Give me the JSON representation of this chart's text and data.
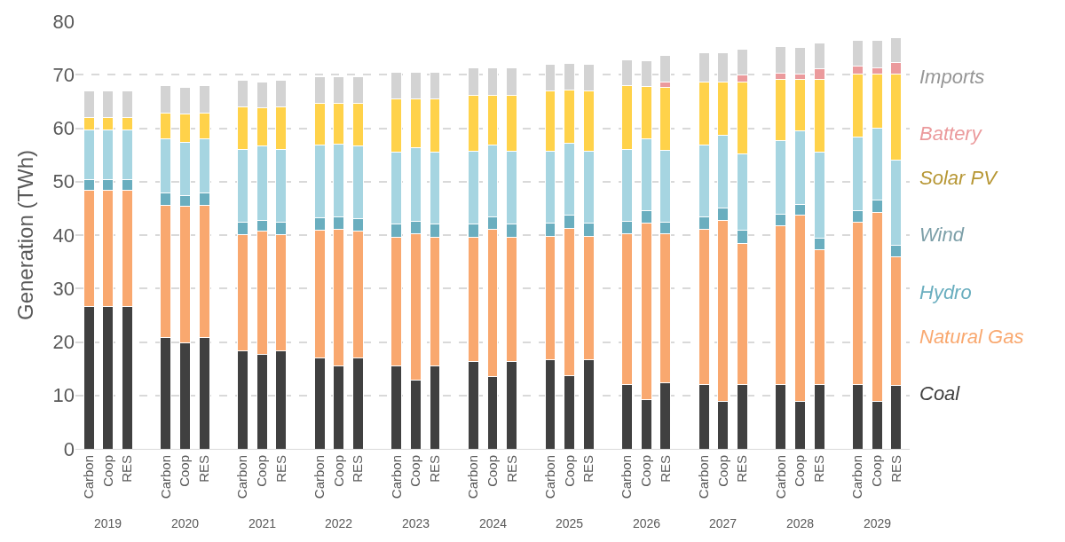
{
  "chart_data": {
    "type": "bar",
    "stacked": true,
    "ylabel": "Generation (TWh)",
    "categories": [
      "Carbon",
      "Coop",
      "RES",
      "Carbon",
      "Coop",
      "RES",
      "Carbon",
      "Coop",
      "RES",
      "Carbon",
      "Coop",
      "RES",
      "Carbon",
      "Coop",
      "RES",
      "Carbon",
      "Coop",
      "RES",
      "Carbon",
      "Coop",
      "RES",
      "Carbon",
      "Coop",
      "RES",
      "Carbon",
      "Coop",
      "RES",
      "Carbon",
      "Coop",
      "RES",
      "Carbon",
      "Coop",
      "RES"
    ],
    "annotations": [
      "2019",
      "2020",
      "2021",
      "2022",
      "2023",
      "2024",
      "2025",
      "2026",
      "2027",
      "2028",
      "2029"
    ],
    "ylim": [
      0,
      80
    ],
    "yticks": [
      0,
      10,
      20,
      30,
      40,
      50,
      60,
      70,
      80
    ],
    "grid": "y",
    "legend": "right",
    "series": [
      {
        "name": "Coal",
        "color": "#404040",
        "values": [
          26.7,
          26.7,
          26.7,
          20.9,
          19.9,
          20.9,
          18.4,
          17.6,
          18.4,
          17.0,
          15.6,
          17.0,
          15.5,
          12.9,
          15.5,
          16.4,
          13.5,
          16.4,
          16.6,
          13.7,
          16.6,
          12.1,
          9.2,
          12.4,
          12.1,
          8.9,
          12.1,
          12.1,
          8.9,
          12.1,
          12.1,
          8.9,
          11.9
        ]
      },
      {
        "name": "Natural Gas",
        "color": "#f9a86f",
        "values": [
          21.6,
          21.6,
          21.6,
          24.7,
          25.5,
          24.7,
          21.7,
          23.1,
          21.7,
          23.9,
          25.5,
          23.7,
          24.1,
          27.3,
          24.1,
          23.2,
          27.6,
          23.2,
          23.2,
          27.6,
          23.2,
          28.1,
          33.0,
          27.8,
          29.0,
          33.9,
          26.4,
          29.6,
          34.8,
          25.2,
          30.3,
          35.4,
          24.1
        ]
      },
      {
        "name": "Hydro",
        "color": "#6aaebf",
        "values": [
          2.1,
          2.1,
          2.1,
          2.3,
          2.0,
          2.3,
          2.3,
          2.1,
          2.3,
          2.4,
          2.3,
          2.3,
          2.4,
          2.4,
          2.4,
          2.4,
          2.3,
          2.4,
          2.4,
          2.4,
          2.4,
          2.4,
          2.3,
          2.2,
          2.3,
          2.3,
          2.4,
          2.2,
          2.1,
          2.1,
          2.1,
          2.2,
          2.1
        ]
      },
      {
        "name": "Wind",
        "color": "#a6d5e1",
        "values": [
          9.3,
          9.3,
          9.3,
          10.1,
          10.0,
          10.1,
          13.7,
          13.8,
          13.7,
          13.5,
          13.6,
          13.6,
          13.5,
          13.7,
          13.5,
          13.7,
          13.5,
          13.7,
          13.5,
          13.5,
          13.5,
          13.5,
          13.5,
          13.5,
          13.5,
          13.6,
          14.3,
          13.7,
          13.7,
          16.1,
          13.8,
          13.5,
          15.9
        ]
      },
      {
        "name": "Solar PV",
        "color": "#ffd24a",
        "values": [
          2.3,
          2.3,
          2.3,
          4.9,
          5.3,
          4.9,
          7.9,
          7.2,
          7.9,
          7.8,
          7.6,
          8.0,
          10.0,
          9.2,
          10.0,
          10.5,
          9.3,
          10.5,
          11.2,
          9.9,
          11.2,
          11.8,
          9.8,
          11.8,
          11.7,
          9.9,
          13.4,
          11.6,
          9.7,
          13.7,
          11.8,
          10.1,
          16.1
        ]
      },
      {
        "name": "Battery",
        "color": "#eb9a9c",
        "values": [
          0,
          0,
          0,
          0,
          0,
          0,
          0,
          0,
          0,
          0,
          0,
          0,
          0,
          0,
          0,
          0,
          0,
          0,
          0,
          0,
          0,
          0,
          0,
          0.9,
          0,
          0,
          1.3,
          1.1,
          0.9,
          1.9,
          1.5,
          1.2,
          2.2
        ]
      },
      {
        "name": "Imports",
        "color": "#d3d3d3",
        "values": [
          4.9,
          4.9,
          4.9,
          5.0,
          5.0,
          5.0,
          5.0,
          4.8,
          5.0,
          5.0,
          5.0,
          5.0,
          5.0,
          5.0,
          5.0,
          5.1,
          5.1,
          5.1,
          5.0,
          5.1,
          5.0,
          4.9,
          4.8,
          5.0,
          5.5,
          5.5,
          4.8,
          5.0,
          5.0,
          4.8,
          4.8,
          5.1,
          4.6
        ]
      }
    ]
  }
}
